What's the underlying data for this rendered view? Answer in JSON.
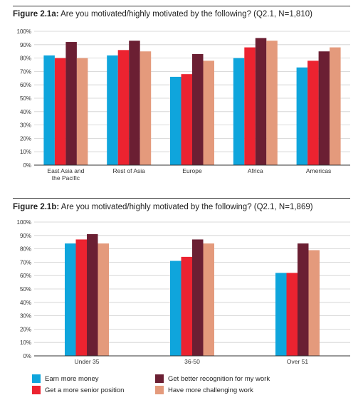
{
  "figures": [
    {
      "title_lead": "Figure 2.1a:",
      "title_rest": " Are you motivated/highly motivated by the following? (Q2.1, N=1,810)"
    },
    {
      "title_lead": "Figure 2.1b:",
      "title_rest": " Are you motivated/highly motivated by the following? (Q2.1, N=1,869)"
    }
  ],
  "legend": [
    {
      "label": "Earn more money",
      "color": "#0fa5dc"
    },
    {
      "label": "Get better recognition for my work",
      "color": "#6b1f33"
    },
    {
      "label": "Get a more senior position",
      "color": "#ec2330"
    },
    {
      "label": "Have more challenging work",
      "color": "#e49a7c"
    }
  ],
  "chart_data": [
    {
      "type": "bar",
      "title": "Figure 2.1a: Are you motivated/highly motivated by the following? (Q2.1, N=1,810)",
      "categories": [
        [
          "East Asia and",
          "the Pacific"
        ],
        [
          "Rest of Asia"
        ],
        [
          "Europe"
        ],
        [
          "Africa"
        ],
        [
          "Americas"
        ]
      ],
      "ylim": [
        0,
        100
      ],
      "yticks": [
        "0%",
        "10%",
        "20%",
        "30%",
        "40%",
        "50%",
        "60%",
        "70%",
        "80%",
        "90%",
        "100%"
      ],
      "grid": true,
      "series": [
        {
          "name": "Earn more money",
          "color": "#0fa5dc",
          "values": [
            82,
            82,
            66,
            80,
            73
          ]
        },
        {
          "name": "Get a more senior position",
          "color": "#ec2330",
          "values": [
            80,
            86,
            68,
            88,
            78
          ]
        },
        {
          "name": "Get better recognition for my work",
          "color": "#6b1f33",
          "values": [
            92,
            93,
            83,
            95,
            85
          ]
        },
        {
          "name": "Have more challenging work",
          "color": "#e49a7c",
          "values": [
            80,
            85,
            78,
            93,
            88
          ]
        }
      ]
    },
    {
      "type": "bar",
      "title": "Figure 2.1b: Are you motivated/highly motivated by the following? (Q2.1, N=1,869)",
      "categories": [
        [
          "Under 35"
        ],
        [
          "36-50"
        ],
        [
          "Over 51"
        ]
      ],
      "ylim": [
        0,
        100
      ],
      "yticks": [
        "0%",
        "10%",
        "20%",
        "30%",
        "40%",
        "50%",
        "60%",
        "70%",
        "80%",
        "90%",
        "100%"
      ],
      "grid": true,
      "series": [
        {
          "name": "Earn more money",
          "color": "#0fa5dc",
          "values": [
            84,
            71,
            62
          ]
        },
        {
          "name": "Get a more senior position",
          "color": "#ec2330",
          "values": [
            87,
            74,
            62
          ]
        },
        {
          "name": "Get better recognition for my work",
          "color": "#6b1f33",
          "values": [
            91,
            87,
            84
          ]
        },
        {
          "name": "Have more challenging work",
          "color": "#e49a7c",
          "values": [
            84,
            84,
            79
          ]
        }
      ]
    }
  ]
}
